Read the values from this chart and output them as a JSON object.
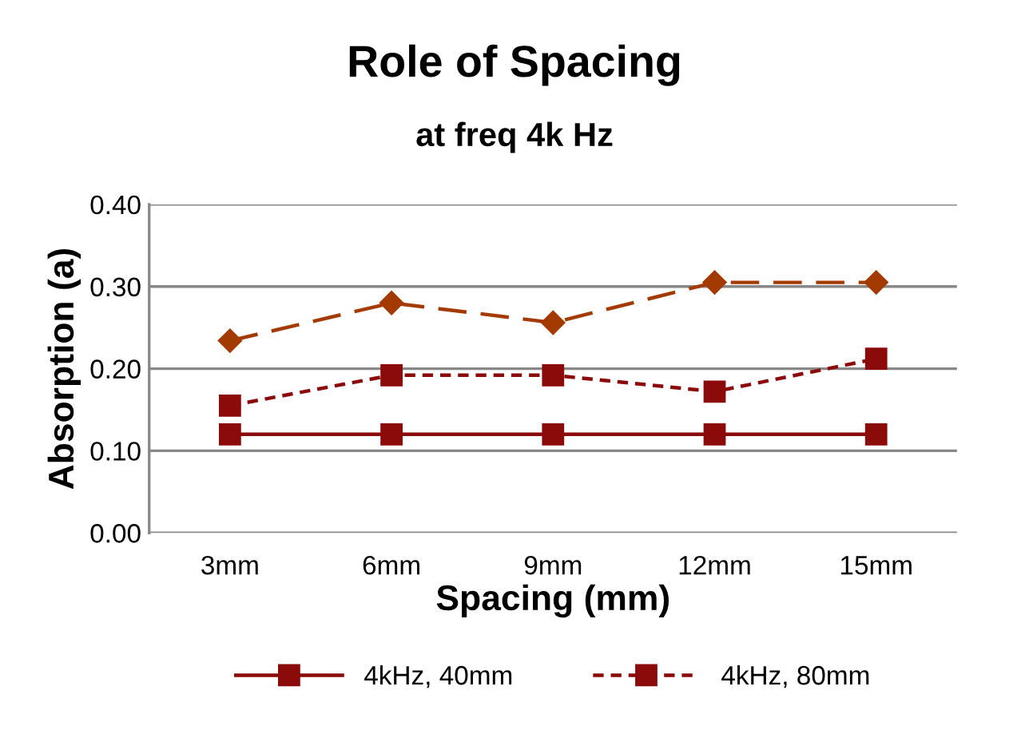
{
  "chart_data": {
    "type": "line",
    "title": "Role of Spacing",
    "subtitle": "at freq 4k Hz",
    "xlabel": "Spacing (mm)",
    "ylabel": "Absorption (a)",
    "categories": [
      "3mm",
      "6mm",
      "9mm",
      "12mm",
      "15mm"
    ],
    "series": [
      {
        "name": "4kHz, 40mm",
        "color": "#8b0a0a",
        "marker": "square",
        "line_style": "solid",
        "values": [
          0.12,
          0.12,
          0.12,
          0.12,
          0.12
        ]
      },
      {
        "name": "4kHz, 80mm",
        "color": "#8b0a0a",
        "marker": "square",
        "line_style": "dotted",
        "values": [
          0.155,
          0.192,
          0.192,
          0.172,
          0.212
        ]
      },
      {
        "color": "#a33a00",
        "marker": "diamond",
        "line_style": "dashed",
        "values": [
          0.234,
          0.28,
          0.256,
          0.305,
          0.305
        ]
      }
    ],
    "ylim": [
      0,
      0.4
    ],
    "yticks": [
      {
        "value": 0,
        "label": "0.00"
      },
      {
        "value": 0.1,
        "label": "0.10"
      },
      {
        "value": 0.2,
        "label": "0.20"
      },
      {
        "value": 0.3,
        "label": "0.30"
      },
      {
        "value": 0.4,
        "label": "0.40"
      }
    ],
    "grid": "y",
    "legend": "bottom"
  }
}
